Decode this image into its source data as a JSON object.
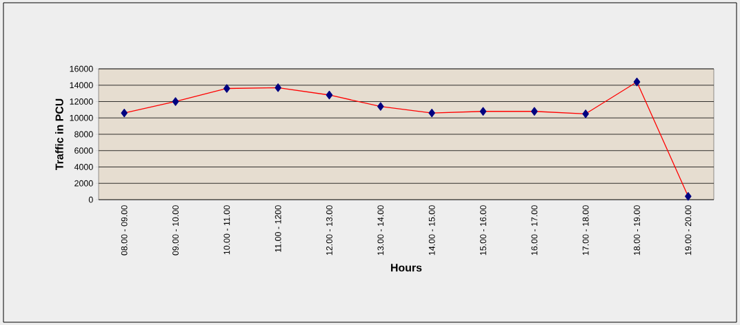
{
  "chart_data": {
    "type": "line",
    "xlabel": "Hours",
    "ylabel": "Traffic in PCU",
    "categories": [
      "08.00 - 09.00",
      "09.00 - 10.00",
      "10.00 - 11.00",
      "11.00 - 1200",
      "12.00 - 13.00",
      "13.00 - 14.00",
      "14.00 - 15.00",
      "15.00 - 16.00",
      "16.00 - 17.00",
      "17.00 - 18.00",
      "18.00 - 19.00",
      "19.00 - 20.00"
    ],
    "values": [
      10600,
      12000,
      13600,
      13700,
      12800,
      11400,
      10600,
      10800,
      10800,
      10500,
      14400,
      400
    ],
    "color": "#ff0000",
    "marker": "diamond",
    "line_style": "solid",
    "grid": "y",
    "ylim": [
      0,
      16000
    ],
    "yticks": [
      0,
      2000,
      4000,
      6000,
      8000,
      10000,
      12000,
      14000,
      16000
    ]
  }
}
